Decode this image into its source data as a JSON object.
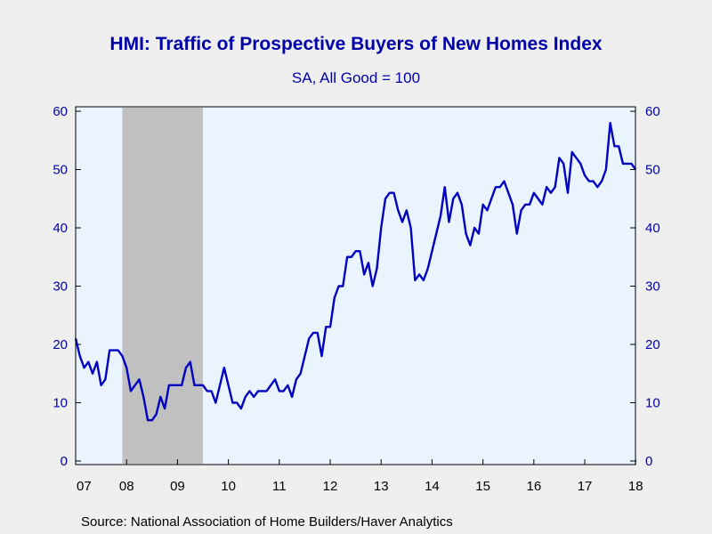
{
  "chart_data": {
    "type": "line",
    "title": "HMI: Traffic of Prospective Buyers of New Homes Index",
    "subtitle": "SA, All Good = 100",
    "source": "Source:  National Association of Home Builders/Haver Analytics",
    "ylim": [
      0,
      60
    ],
    "y_ticks": [
      "0",
      "10",
      "20",
      "30",
      "40",
      "50",
      "60"
    ],
    "x_tick_labels": [
      "07",
      "08",
      "09",
      "10",
      "11",
      "12",
      "13",
      "14",
      "15",
      "16",
      "17",
      "18"
    ],
    "recession_shading": {
      "start": "2007-12",
      "end": "2009-06"
    },
    "grid": false,
    "colors": {
      "line": "#0000c0",
      "recession": "#c0c0c0",
      "plot_bg": "#eaf4ff",
      "text": "#0000a8"
    },
    "series": [
      {
        "start": "2007-01",
        "values": [
          21,
          18,
          16,
          17,
          15,
          17,
          13,
          14,
          19,
          19,
          19,
          18,
          16,
          12,
          13,
          14,
          11,
          7,
          7,
          8,
          11,
          9,
          13,
          13,
          13,
          13,
          16,
          17,
          13,
          13,
          13,
          12,
          12,
          10,
          13,
          16,
          13,
          10,
          10,
          9,
          11,
          12,
          11,
          12,
          12,
          12,
          13,
          14,
          12,
          12,
          13,
          11,
          14,
          15,
          18,
          21,
          22,
          22,
          18,
          23,
          23,
          28,
          30,
          30,
          35,
          35,
          36,
          36,
          32,
          34,
          30,
          33,
          40,
          45,
          46,
          46,
          43,
          41,
          43,
          40,
          31,
          32,
          31,
          33,
          36,
          39,
          42,
          47,
          41,
          45,
          46,
          44,
          39,
          37,
          40,
          39,
          44,
          43,
          45,
          47,
          47,
          48,
          46,
          44,
          39,
          43,
          44,
          44,
          46,
          45,
          44,
          47,
          46,
          47,
          52,
          51,
          46,
          53,
          52,
          51,
          49,
          48,
          48,
          47,
          48,
          50,
          58,
          54,
          54,
          51,
          51,
          51,
          50
        ]
      }
    ]
  }
}
